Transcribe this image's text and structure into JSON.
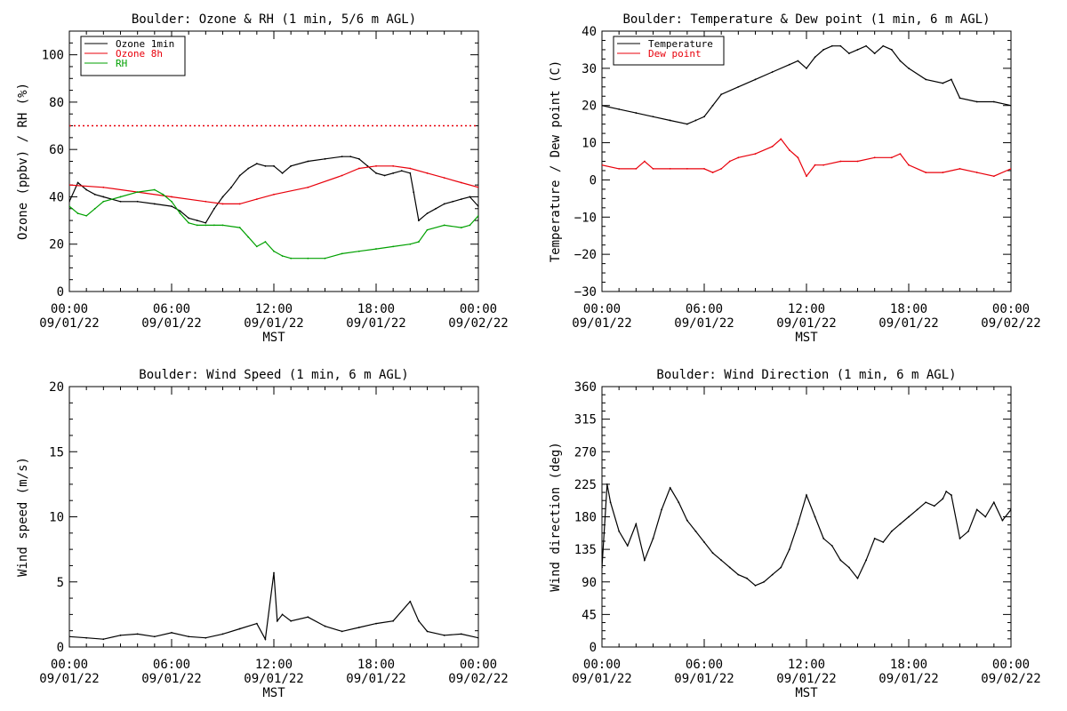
{
  "colors": {
    "ozone_1min": "#000000",
    "ozone_8h": "#e8000b",
    "rh": "#00a000",
    "temperature": "#000000",
    "dewpoint": "#e8000b",
    "speed": "#000000",
    "direction": "#000000",
    "threshold": "#e8000b"
  },
  "chart_data": [
    {
      "type": "line",
      "title": "Boulder: Ozone & RH (1 min, 5/6 m AGL)",
      "ylabel": "Ozone (ppbv) / RH (%)",
      "xlabel": "MST",
      "xlim_hours": [
        0,
        24
      ],
      "ylim": [
        0,
        110
      ],
      "yticks": [
        "0",
        "20",
        "40",
        "60",
        "80",
        "100"
      ],
      "ytick_values": [
        0,
        20,
        40,
        60,
        80,
        100
      ],
      "xticks": [
        {
          "time": "00:00",
          "date": "09/01/22"
        },
        {
          "time": "06:00",
          "date": "09/01/22"
        },
        {
          "time": "12:00",
          "date": "09/01/22"
        },
        {
          "time": "18:00",
          "date": "09/01/22"
        },
        {
          "time": "00:00",
          "date": "09/02/22"
        }
      ],
      "legend_position": "top-left",
      "reference_line": {
        "y": 70,
        "style": "dotted",
        "color": "#e8000b"
      },
      "series": [
        {
          "name": "Ozone 1min",
          "color": "#000000",
          "x": [
            0,
            0.5,
            1,
            1.5,
            2,
            3,
            4,
            5,
            6,
            6.5,
            7,
            7.5,
            8,
            8.5,
            9,
            9.5,
            10,
            10.5,
            11,
            11.5,
            12,
            12.5,
            13,
            14,
            15,
            16,
            16.5,
            17,
            17.5,
            18,
            18.5,
            19,
            19.5,
            20,
            20.2,
            20.5,
            21,
            21.5,
            22,
            22.5,
            23,
            23.5,
            24
          ],
          "y": [
            38,
            46,
            43,
            41,
            40,
            38,
            38,
            37,
            36,
            34,
            31,
            30,
            29,
            35,
            40,
            44,
            49,
            52,
            54,
            53,
            53,
            50,
            53,
            55,
            56,
            57,
            57,
            56,
            53,
            50,
            49,
            50,
            51,
            50,
            42,
            30,
            33,
            35,
            37,
            38,
            39,
            40,
            36
          ]
        },
        {
          "name": "Ozone 8h",
          "color": "#e8000b",
          "x": [
            0,
            2,
            4,
            6,
            8,
            9,
            10,
            11,
            12,
            14,
            16,
            17,
            18,
            19,
            20,
            21,
            22,
            23,
            24
          ],
          "y": [
            45,
            44,
            42,
            40,
            38,
            37,
            37,
            39,
            41,
            44,
            49,
            52,
            53,
            53,
            52,
            50,
            48,
            46,
            44
          ]
        },
        {
          "name": "RH",
          "color": "#00a000",
          "x": [
            0,
            0.5,
            1,
            1.5,
            2,
            3,
            4,
            5,
            5.5,
            6,
            6.5,
            7,
            7.5,
            8,
            8.5,
            9,
            10,
            10.5,
            11,
            11.5,
            12,
            12.5,
            13,
            14,
            15,
            16,
            17,
            18,
            19,
            20,
            20.5,
            21,
            22,
            23,
            23.5,
            24
          ],
          "y": [
            36,
            33,
            32,
            35,
            38,
            40,
            42,
            43,
            41,
            38,
            33,
            29,
            28,
            28,
            28,
            28,
            27,
            23,
            19,
            21,
            17,
            15,
            14,
            14,
            14,
            16,
            17,
            18,
            19,
            20,
            21,
            26,
            28,
            27,
            28,
            32
          ]
        }
      ]
    },
    {
      "type": "line",
      "title": "Boulder: Temperature & Dew point (1 min, 6 m AGL)",
      "ylabel": "Temperature / Dew point (C)",
      "xlabel": "MST",
      "xlim_hours": [
        0,
        24
      ],
      "ylim": [
        -30,
        40
      ],
      "yticks": [
        "−30",
        "−20",
        "−10",
        "0",
        "10",
        "20",
        "30",
        "40"
      ],
      "ytick_values": [
        -30,
        -20,
        -10,
        0,
        10,
        20,
        30,
        40
      ],
      "xticks": [
        {
          "time": "00:00",
          "date": "09/01/22"
        },
        {
          "time": "06:00",
          "date": "09/01/22"
        },
        {
          "time": "12:00",
          "date": "09/01/22"
        },
        {
          "time": "18:00",
          "date": "09/01/22"
        },
        {
          "time": "00:00",
          "date": "09/02/22"
        }
      ],
      "legend_position": "top-left",
      "series": [
        {
          "name": "Temperature",
          "color": "#000000",
          "x": [
            0,
            1,
            2,
            3,
            4,
            5,
            5.5,
            6,
            6.5,
            7,
            8,
            9,
            10,
            11,
            11.5,
            12,
            12.5,
            13,
            13.5,
            14,
            14.5,
            15,
            15.5,
            16,
            16.5,
            17,
            17.5,
            18,
            19,
            20,
            20.5,
            21,
            22,
            23,
            24
          ],
          "y": [
            20,
            19,
            18,
            17,
            16,
            15,
            16,
            17,
            20,
            23,
            25,
            27,
            29,
            31,
            32,
            30,
            33,
            35,
            36,
            36,
            34,
            35,
            36,
            34,
            36,
            35,
            32,
            30,
            27,
            26,
            27,
            22,
            21,
            21,
            20
          ]
        },
        {
          "name": "Dew point",
          "color": "#e8000b",
          "x": [
            0,
            1,
            2,
            2.5,
            3,
            4,
            5,
            6,
            6.5,
            7,
            7.5,
            8,
            9,
            10,
            10.5,
            11,
            11.5,
            12,
            12.5,
            13,
            14,
            15,
            16,
            17,
            17.5,
            18,
            19,
            20,
            21,
            22,
            23,
            24
          ],
          "y": [
            4,
            3,
            3,
            5,
            3,
            3,
            3,
            3,
            2,
            3,
            5,
            6,
            7,
            9,
            11,
            8,
            6,
            1,
            4,
            4,
            5,
            5,
            6,
            6,
            7,
            4,
            2,
            2,
            3,
            2,
            1,
            3
          ]
        }
      ]
    },
    {
      "type": "line",
      "title": "Boulder: Wind Speed (1 min, 6 m AGL)",
      "ylabel": "Wind speed (m/s)",
      "xlabel": "MST",
      "xlim_hours": [
        0,
        24
      ],
      "ylim": [
        0,
        20
      ],
      "yticks": [
        "0",
        "5",
        "10",
        "15",
        "20"
      ],
      "ytick_values": [
        0,
        5,
        10,
        15,
        20
      ],
      "xticks": [
        {
          "time": "00:00",
          "date": "09/01/22"
        },
        {
          "time": "06:00",
          "date": "09/01/22"
        },
        {
          "time": "12:00",
          "date": "09/01/22"
        },
        {
          "time": "18:00",
          "date": "09/01/22"
        },
        {
          "time": "00:00",
          "date": "09/02/22"
        }
      ],
      "series": [
        {
          "name": "",
          "color": "#000000",
          "x": [
            0,
            1,
            2,
            3,
            4,
            5,
            6,
            7,
            8,
            9,
            10,
            11,
            11.5,
            12,
            12.2,
            12.5,
            13,
            14,
            15,
            16,
            17,
            18,
            19,
            20,
            20.5,
            21,
            22,
            23,
            24
          ],
          "y": [
            0.8,
            0.7,
            0.6,
            0.9,
            1.0,
            0.8,
            1.1,
            0.8,
            0.7,
            1.0,
            1.4,
            1.8,
            0.6,
            5.7,
            2.0,
            2.5,
            2.0,
            2.3,
            1.6,
            1.2,
            1.5,
            1.8,
            2.0,
            3.5,
            2.0,
            1.2,
            0.9,
            1.0,
            0.7
          ]
        }
      ]
    },
    {
      "type": "line",
      "title": "Boulder: Wind Direction (1 min, 6 m AGL)",
      "ylabel": "Wind direction (deg)",
      "xlabel": "MST",
      "xlim_hours": [
        0,
        24
      ],
      "ylim": [
        0,
        360
      ],
      "yticks": [
        "0",
        "45",
        "90",
        "135",
        "180",
        "225",
        "270",
        "315",
        "360"
      ],
      "ytick_values": [
        0,
        45,
        90,
        135,
        180,
        225,
        270,
        315,
        360
      ],
      "xticks": [
        {
          "time": "00:00",
          "date": "09/01/22"
        },
        {
          "time": "06:00",
          "date": "09/01/22"
        },
        {
          "time": "12:00",
          "date": "09/01/22"
        },
        {
          "time": "18:00",
          "date": "09/01/22"
        },
        {
          "time": "00:00",
          "date": "09/02/22"
        }
      ],
      "series": [
        {
          "name": "",
          "color": "#000000",
          "x": [
            0,
            0.3,
            0.5,
            1,
            1.5,
            2,
            2.5,
            3,
            3.5,
            4,
            4.5,
            5,
            5.5,
            6,
            6.5,
            7,
            7.5,
            8,
            8.5,
            9,
            9.5,
            10,
            10.5,
            11,
            11.5,
            12,
            12.5,
            13,
            13.5,
            14,
            14.5,
            15,
            15.5,
            16,
            16.5,
            17,
            17.5,
            18,
            18.5,
            19,
            19.5,
            20,
            20.2,
            20.5,
            21,
            21.5,
            22,
            22.5,
            23,
            23.5,
            24
          ],
          "y": [
            110,
            225,
            200,
            160,
            140,
            170,
            120,
            150,
            190,
            220,
            200,
            175,
            160,
            145,
            130,
            120,
            110,
            100,
            95,
            85,
            90,
            100,
            110,
            135,
            170,
            210,
            180,
            150,
            140,
            120,
            110,
            95,
            120,
            150,
            145,
            160,
            170,
            180,
            190,
            200,
            195,
            205,
            215,
            210,
            150,
            160,
            190,
            180,
            200,
            175,
            190
          ]
        }
      ]
    }
  ]
}
